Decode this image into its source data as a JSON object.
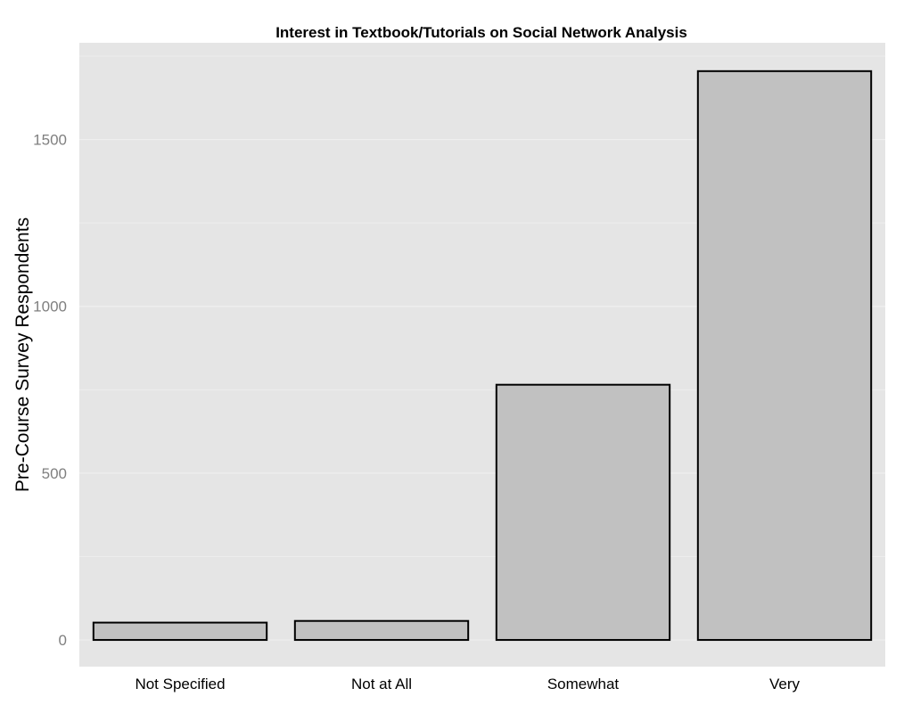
{
  "chart_data": {
    "type": "bar",
    "title": "Interest in Textbook/Tutorials on Social Network Analysis",
    "xlabel": "",
    "ylabel": "Pre-Course Survey Respondents",
    "categories": [
      "Not Specified",
      "Not at All",
      "Somewhat",
      "Very"
    ],
    "values": [
      52,
      57,
      765,
      1705
    ],
    "ylim": [
      -80,
      1790
    ],
    "yticks": [
      "0",
      "500",
      "1000",
      "1500"
    ],
    "grid": true,
    "legend": "none",
    "colors": {
      "panel": "#e5e5e5",
      "bar_fill": "#c1c1c1",
      "bar_stroke": "#000000",
      "grid": "#efefef"
    }
  }
}
